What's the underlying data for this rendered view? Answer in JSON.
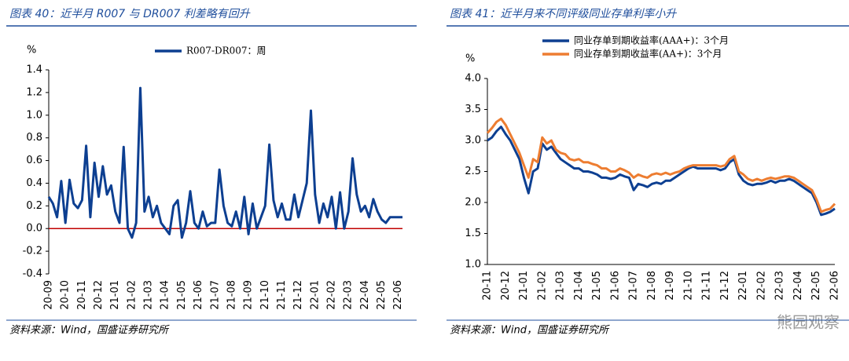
{
  "chart_data": [
    {
      "type": "line",
      "title": "图表 40：近半月 R007 与 DR007 利差略有回升",
      "source": "资料来源：Wind，国盛证券研究所",
      "ylabel": "%",
      "legend": "top-center",
      "zero_line_color": "#c00000",
      "ylim": [
        -0.4,
        1.4
      ],
      "yticks": [
        -0.4,
        -0.2,
        {
          "value": 0,
          "label": "0.0"
        },
        0.2,
        0.4,
        0.6,
        0.8,
        {
          "value": 1,
          "label": "1.0"
        },
        1.2,
        1.4
      ],
      "categories": [
        "20-09",
        null,
        null,
        null,
        "20-10",
        null,
        null,
        null,
        "20-11",
        null,
        null,
        null,
        "20-12",
        null,
        null,
        null,
        "21-01",
        null,
        null,
        null,
        "21-02",
        null,
        null,
        null,
        "21-03",
        null,
        null,
        null,
        "21-04",
        null,
        null,
        null,
        "21-05",
        null,
        null,
        null,
        "21-06",
        null,
        null,
        null,
        "21-07",
        null,
        null,
        null,
        "21-08",
        null,
        null,
        null,
        "21-09",
        null,
        null,
        null,
        "21-10",
        null,
        null,
        null,
        "21-11",
        null,
        null,
        null,
        "21-12",
        null,
        null,
        null,
        "22-01",
        null,
        null,
        null,
        "22-02",
        null,
        null,
        null,
        "22-03",
        null,
        null,
        null,
        "22-04",
        null,
        null,
        null,
        "22-05",
        null,
        null,
        null,
        "22-06",
        null
      ],
      "series": [
        {
          "name": "R007-DR007：周",
          "color": "#0d3f91",
          "values": [
            0.28,
            0.22,
            0.1,
            0.42,
            0.05,
            0.43,
            0.22,
            0.18,
            0.25,
            0.73,
            0.1,
            0.58,
            0.28,
            0.55,
            0.3,
            0.38,
            0.15,
            0.05,
            0.72,
            0.0,
            -0.08,
            0.05,
            1.24,
            0.15,
            0.28,
            0.1,
            0.2,
            0.05,
            0.0,
            -0.05,
            0.2,
            0.25,
            -0.08,
            0.05,
            0.33,
            0.05,
            0.0,
            0.15,
            0.02,
            0.05,
            0.05,
            0.52,
            0.2,
            0.05,
            0.02,
            0.15,
            0.0,
            0.28,
            -0.05,
            0.22,
            0.0,
            0.1,
            0.2,
            0.74,
            0.25,
            0.1,
            0.22,
            0.08,
            0.08,
            0.3,
            0.1,
            0.25,
            0.4,
            1.04,
            0.3,
            0.05,
            0.22,
            0.1,
            0.28,
            0.0,
            0.32,
            0.0,
            0.15,
            0.62,
            0.3,
            0.15,
            0.2,
            0.1,
            0.26,
            0.15,
            0.08,
            0.05,
            0.1,
            0.1,
            0.1,
            0.1
          ]
        }
      ]
    },
    {
      "type": "line",
      "title": "图表 41：近半月来不同评级同业存单利率小升",
      "source": "资料来源：Wind，国盛证券研究所",
      "ylabel": "%",
      "legend": "top-left",
      "ylim": [
        1,
        4
      ],
      "yticks": [
        {
          "value": 1,
          "label": "1.0"
        },
        1.5,
        {
          "value": 2,
          "label": "2.0"
        },
        2.5,
        {
          "value": 3,
          "label": "3.0"
        },
        3.5,
        {
          "value": 4,
          "label": "4.0"
        }
      ],
      "categories": [
        "20-11",
        null,
        null,
        null,
        "20-12",
        null,
        null,
        null,
        "21-01",
        null,
        null,
        null,
        "21-02",
        null,
        null,
        null,
        "21-03",
        null,
        null,
        null,
        "21-04",
        null,
        null,
        null,
        "21-05",
        null,
        null,
        null,
        "21-06",
        null,
        null,
        null,
        "21-07",
        null,
        null,
        null,
        "21-08",
        null,
        null,
        null,
        "21-09",
        null,
        null,
        null,
        "21-10",
        null,
        null,
        null,
        "21-11",
        null,
        null,
        null,
        "21-12",
        null,
        null,
        null,
        "22-01",
        null,
        null,
        null,
        "22-02",
        null,
        null,
        null,
        "22-03",
        null,
        null,
        null,
        "22-04",
        null,
        null,
        null,
        "22-05",
        null,
        null,
        null,
        "22-06"
      ],
      "series": [
        {
          "name": "同业存单到期收益率(AAA+)：3个月",
          "color": "#0d3f91",
          "values": [
            3.0,
            3.05,
            3.15,
            3.22,
            3.1,
            3.0,
            2.85,
            2.7,
            2.4,
            2.15,
            2.5,
            2.55,
            2.95,
            2.85,
            2.9,
            2.8,
            2.7,
            2.65,
            2.6,
            2.55,
            2.55,
            2.5,
            2.5,
            2.48,
            2.45,
            2.4,
            2.4,
            2.38,
            2.4,
            2.45,
            2.42,
            2.4,
            2.2,
            2.3,
            2.28,
            2.25,
            2.3,
            2.32,
            2.3,
            2.35,
            2.35,
            2.4,
            2.45,
            2.5,
            2.55,
            2.58,
            2.55,
            2.55,
            2.55,
            2.55,
            2.55,
            2.52,
            2.55,
            2.65,
            2.7,
            2.45,
            2.35,
            2.3,
            2.28,
            2.3,
            2.3,
            2.32,
            2.35,
            2.32,
            2.35,
            2.35,
            2.38,
            2.35,
            2.3,
            2.25,
            2.2,
            2.15,
            2.0,
            1.8,
            1.82,
            1.85,
            1.9
          ]
        },
        {
          "name": "同业存单到期收益率(AA+)：3个月",
          "color": "#ed7d31",
          "values": [
            3.12,
            3.2,
            3.3,
            3.35,
            3.25,
            3.1,
            2.95,
            2.8,
            2.6,
            2.4,
            2.7,
            2.65,
            3.05,
            2.95,
            3.0,
            2.85,
            2.8,
            2.78,
            2.7,
            2.68,
            2.7,
            2.65,
            2.65,
            2.62,
            2.6,
            2.55,
            2.55,
            2.5,
            2.5,
            2.55,
            2.52,
            2.48,
            2.4,
            2.45,
            2.42,
            2.4,
            2.45,
            2.47,
            2.45,
            2.48,
            2.45,
            2.48,
            2.5,
            2.55,
            2.58,
            2.6,
            2.6,
            2.6,
            2.6,
            2.6,
            2.6,
            2.58,
            2.6,
            2.7,
            2.75,
            2.5,
            2.45,
            2.38,
            2.35,
            2.38,
            2.35,
            2.38,
            2.4,
            2.38,
            2.4,
            2.42,
            2.42,
            2.4,
            2.35,
            2.3,
            2.25,
            2.2,
            2.05,
            1.85,
            1.88,
            1.9,
            1.98
          ]
        }
      ]
    }
  ],
  "watermark": "熊园观察"
}
